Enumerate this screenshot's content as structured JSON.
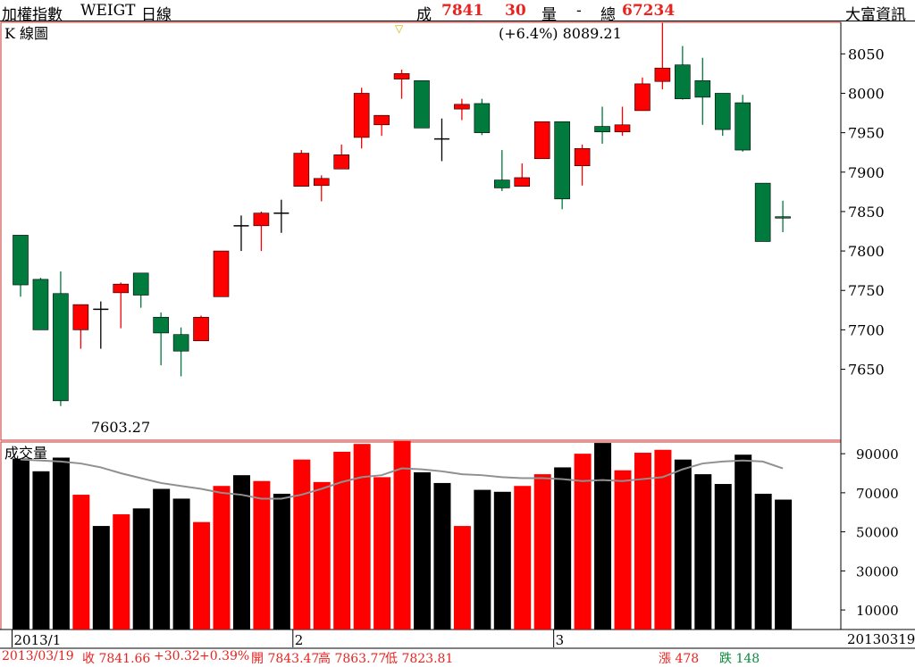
{
  "header": {
    "title": "加權指數",
    "code": "WEIGT",
    "period": "日線",
    "deal_label": "成",
    "deal_value": "7841",
    "change": "30",
    "volume_label": "量",
    "volume_value": "-",
    "total_label": "總",
    "total_value": "67234",
    "brand": "大富資訊"
  },
  "kline": {
    "label": "K 線圖",
    "high_annotation": "(+6.4%) 8089.21",
    "low_annotation": "7603.27",
    "marker": "▽"
  },
  "volume_panel": {
    "label": "成交量"
  },
  "footer": {
    "date": "2013/03/19",
    "close": "收 7841.66",
    "change": "+30.32",
    "pct": "+0.39%",
    "open": "開 7843.47",
    "high": "高 7863.77",
    "low": "低 7823.81",
    "up_count": "漲 478",
    "down_count": "跌 148",
    "end_date": "20130319"
  },
  "colors": {
    "up": "#ff0000",
    "down": "#007a3d",
    "flat": "#000000",
    "volume_down": "#000000",
    "ma": "#909090",
    "frame": "#c8302c"
  },
  "chart_data": [
    {
      "type": "candlestick",
      "ylim": [
        7560,
        8090
      ],
      "yticks": [
        7650,
        7700,
        7750,
        7800,
        7850,
        7900,
        7950,
        8000,
        8050
      ],
      "x_tick_labels": [
        "2013/1",
        "2",
        "3"
      ],
      "x_tick_index": [
        0,
        14,
        27
      ],
      "candles": [
        {
          "o": 7820,
          "h": 7820,
          "l": 7742,
          "c": 7757
        },
        {
          "o": 7764,
          "h": 7766,
          "l": 7700,
          "c": 7700
        },
        {
          "o": 7746,
          "h": 7774,
          "l": 7603.27,
          "c": 7610
        },
        {
          "o": 7700,
          "h": 7732,
          "l": 7676,
          "c": 7732
        },
        {
          "o": 7726,
          "h": 7736,
          "l": 7676,
          "c": 7726
        },
        {
          "o": 7747,
          "h": 7760,
          "l": 7702,
          "c": 7758
        },
        {
          "o": 7772,
          "h": 7772,
          "l": 7728,
          "c": 7744
        },
        {
          "o": 7716,
          "h": 7722,
          "l": 7655,
          "c": 7696
        },
        {
          "o": 7694,
          "h": 7703,
          "l": 7641,
          "c": 7673
        },
        {
          "o": 7686,
          "h": 7718,
          "l": 7686,
          "c": 7716
        },
        {
          "o": 7742,
          "h": 7800,
          "l": 7742,
          "c": 7800
        },
        {
          "o": 7832,
          "h": 7845,
          "l": 7800,
          "c": 7832
        },
        {
          "o": 7832,
          "h": 7850,
          "l": 7800,
          "c": 7848
        },
        {
          "o": 7848,
          "h": 7865,
          "l": 7823,
          "c": 7848
        },
        {
          "o": 7882,
          "h": 7928,
          "l": 7882,
          "c": 7924
        },
        {
          "o": 7883,
          "h": 7896,
          "l": 7863,
          "c": 7892
        },
        {
          "o": 7904,
          "h": 7935,
          "l": 7904,
          "c": 7922
        },
        {
          "o": 7944,
          "h": 8007,
          "l": 7930,
          "c": 8000
        },
        {
          "o": 7960,
          "h": 7972,
          "l": 7946,
          "c": 7972
        },
        {
          "o": 8018,
          "h": 8030,
          "l": 7993,
          "c": 8025
        },
        {
          "o": 8016,
          "h": 8016,
          "l": 7956,
          "c": 7956
        },
        {
          "o": 7942,
          "h": 7968,
          "l": 7914,
          "c": 7942
        },
        {
          "o": 7980,
          "h": 7993,
          "l": 7966,
          "c": 7986
        },
        {
          "o": 7987,
          "h": 7993,
          "l": 7947,
          "c": 7950
        },
        {
          "o": 7890,
          "h": 7928,
          "l": 7876,
          "c": 7880
        },
        {
          "o": 7882,
          "h": 7911,
          "l": 7882,
          "c": 7893
        },
        {
          "o": 7917,
          "h": 7964,
          "l": 7917,
          "c": 7964
        },
        {
          "o": 7964,
          "h": 7964,
          "l": 7853,
          "c": 7866
        },
        {
          "o": 7908,
          "h": 7935,
          "l": 7883,
          "c": 7930
        },
        {
          "o": 7958,
          "h": 7983,
          "l": 7936,
          "c": 7951
        },
        {
          "o": 7951,
          "h": 7983,
          "l": 7946,
          "c": 7960
        },
        {
          "o": 7978,
          "h": 8020,
          "l": 7978,
          "c": 8012
        },
        {
          "o": 8015,
          "h": 8089.21,
          "l": 8005,
          "c": 8032
        },
        {
          "o": 8036,
          "h": 8060,
          "l": 7992,
          "c": 7993
        },
        {
          "o": 8016,
          "h": 8045,
          "l": 7960,
          "c": 7995
        },
        {
          "o": 8000,
          "h": 8000,
          "l": 7946,
          "c": 7954
        },
        {
          "o": 7988,
          "h": 7998,
          "l": 7926,
          "c": 7928
        },
        {
          "o": 7886,
          "h": 7886,
          "l": 7812,
          "c": 7812
        },
        {
          "o": 7843.47,
          "h": 7863.77,
          "l": 7823.81,
          "c": 7841.66
        }
      ]
    },
    {
      "type": "bar",
      "ylim": [
        0,
        96000
      ],
      "yticks": [
        10000,
        30000,
        50000,
        70000,
        90000
      ],
      "values": [
        87500,
        81000,
        88000,
        69000,
        53000,
        59000,
        62000,
        72000,
        67000,
        55000,
        73500,
        79000,
        76000,
        69500,
        87000,
        75500,
        91000,
        95000,
        78000,
        96500,
        80500,
        75000,
        53000,
        71500,
        70500,
        73500,
        79500,
        83000,
        90000,
        95500,
        81500,
        90500,
        92000,
        87000,
        79500,
        74500,
        89500,
        69500,
        66500
      ],
      "ma": [
        87000,
        86500,
        86000,
        85000,
        83000,
        80000,
        77500,
        75000,
        73500,
        72000,
        70000,
        69000,
        67000,
        67000,
        69000,
        72000,
        75500,
        78000,
        79000,
        82500,
        82000,
        81000,
        79500,
        79000,
        78000,
        77500,
        77500,
        77000,
        76000,
        76500,
        76000,
        77000,
        78000,
        82000,
        85000,
        86000,
        86500,
        86000,
        82500
      ]
    }
  ]
}
